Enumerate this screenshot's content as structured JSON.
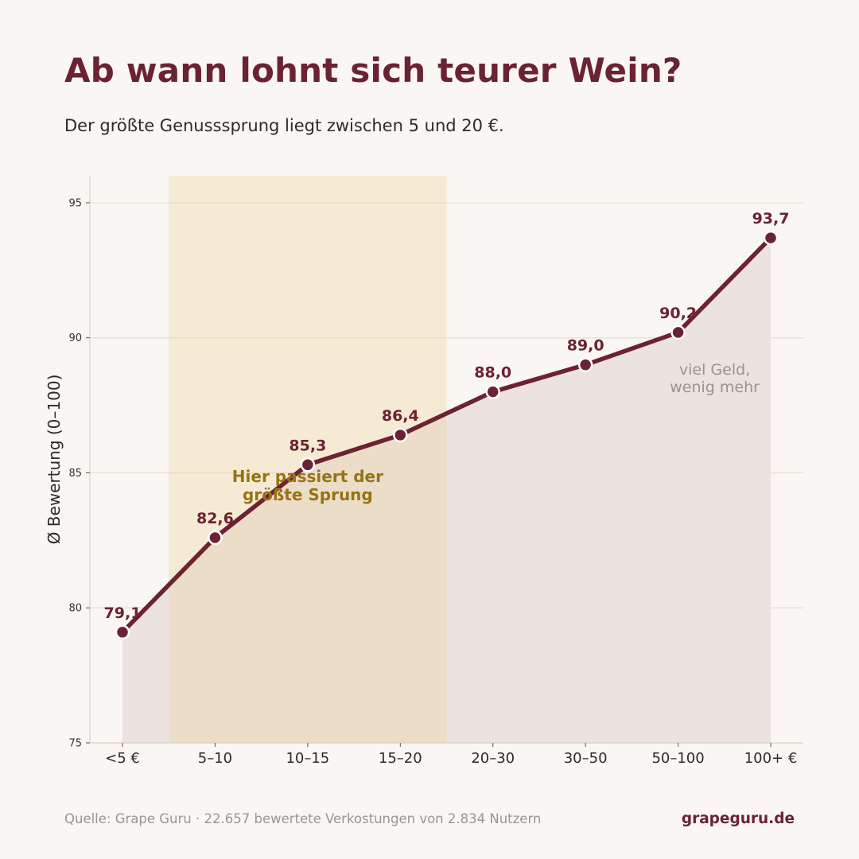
{
  "header": {
    "title": "Ab wann lohnt sich teurer Wein?",
    "subtitle": "Der größte Genusssprung liegt zwischen 5 und 20 €."
  },
  "chart_data": {
    "type": "area",
    "categories": [
      "<5 €",
      "5–10",
      "10–15",
      "15–20",
      "20–30",
      "30–50",
      "50–100",
      "100+ €"
    ],
    "values": [
      79.1,
      82.6,
      85.3,
      86.4,
      88.0,
      89.0,
      90.2,
      93.7
    ],
    "value_labels": [
      "79,1",
      "82,6",
      "85,3",
      "86,4",
      "88,0",
      "89,0",
      "90,2",
      "93,7"
    ],
    "ylabel": "Ø Bewertung (0–100)",
    "xlabel": "",
    "ylim": [
      75,
      96
    ],
    "yticks": [
      75,
      80,
      85,
      90,
      95
    ],
    "grid": true,
    "highlight": {
      "from_category": "5–10",
      "to_category": "15–20",
      "label_lines": [
        "Hier passiert der",
        "größte Sprung"
      ]
    },
    "annotation": {
      "category": "50–100",
      "lines": [
        "viel Geld,",
        "wenig mehr"
      ]
    },
    "colors": {
      "line": "#6b2233",
      "area": "#ebe1df",
      "highlight": "#f1e5d0",
      "highlight_text": "#967415",
      "annotation_text": "#9a9391",
      "grid": "#e9dfca",
      "axis": "#d8d0bd"
    }
  },
  "footer": {
    "source": "Quelle: Grape Guru  ·  22.657 bewertete Verkostungen von 2.834 Nutzern",
    "brand": "grapeguru.de"
  }
}
